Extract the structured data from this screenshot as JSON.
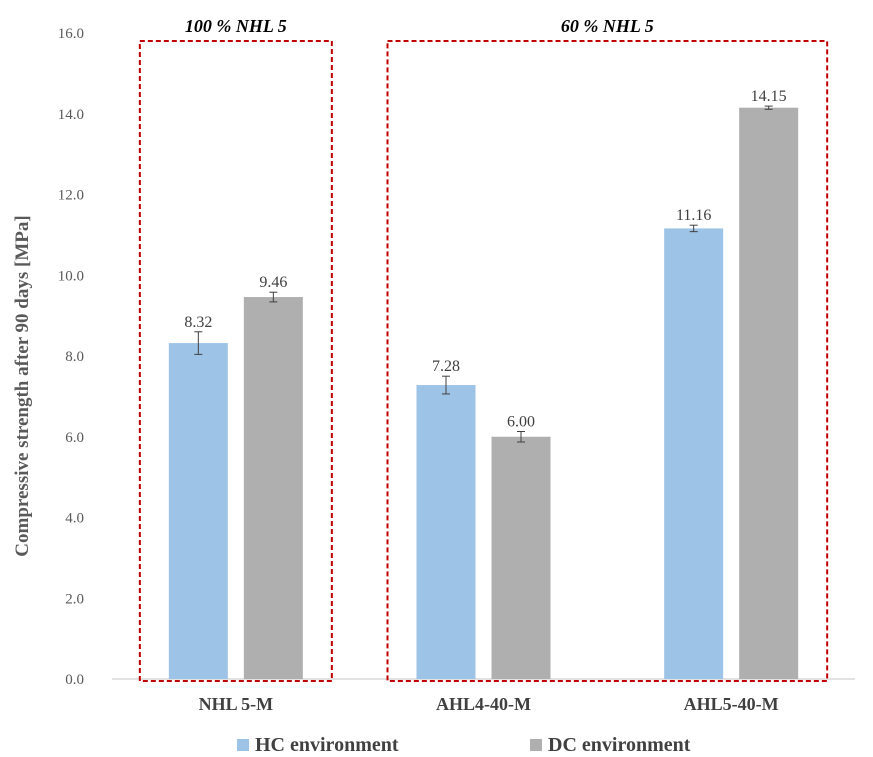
{
  "chart_data": {
    "type": "bar",
    "title": "",
    "xlabel": "",
    "ylabel": "Compressive strength after 90 days [MPa]",
    "ylim": [
      0,
      16
    ],
    "yticks": [
      "0.0",
      "2.0",
      "4.0",
      "6.0",
      "8.0",
      "10.0",
      "12.0",
      "14.0",
      "16.0"
    ],
    "categories": [
      "NHL 5-M",
      "AHL4-40-M",
      "AHL5-40-M"
    ],
    "series": [
      {
        "name": "HC environment",
        "color": "#9DC3E6",
        "values": [
          8.32,
          7.28,
          11.16
        ],
        "errors": [
          0.28,
          0.22,
          0.08
        ],
        "labels": [
          "8.32",
          "7.28",
          "11.16"
        ]
      },
      {
        "name": "DC environment",
        "color": "#AFAFAF",
        "values": [
          9.46,
          6.0,
          14.15
        ],
        "errors": [
          0.12,
          0.13,
          0.04
        ],
        "labels": [
          "9.46",
          "6.00",
          "14.15"
        ]
      }
    ],
    "groups": [
      {
        "label": "100 % NHL 5",
        "categories": [
          "NHL 5-M"
        ]
      },
      {
        "label": "60 % NHL 5",
        "categories": [
          "AHL4-40-M",
          "AHL5-40-M"
        ]
      }
    ],
    "grid": false,
    "legend_position": "bottom"
  },
  "colors": {
    "group_box": "#C00000",
    "axis": "#D9D9D9",
    "error_bar": "#404040"
  }
}
